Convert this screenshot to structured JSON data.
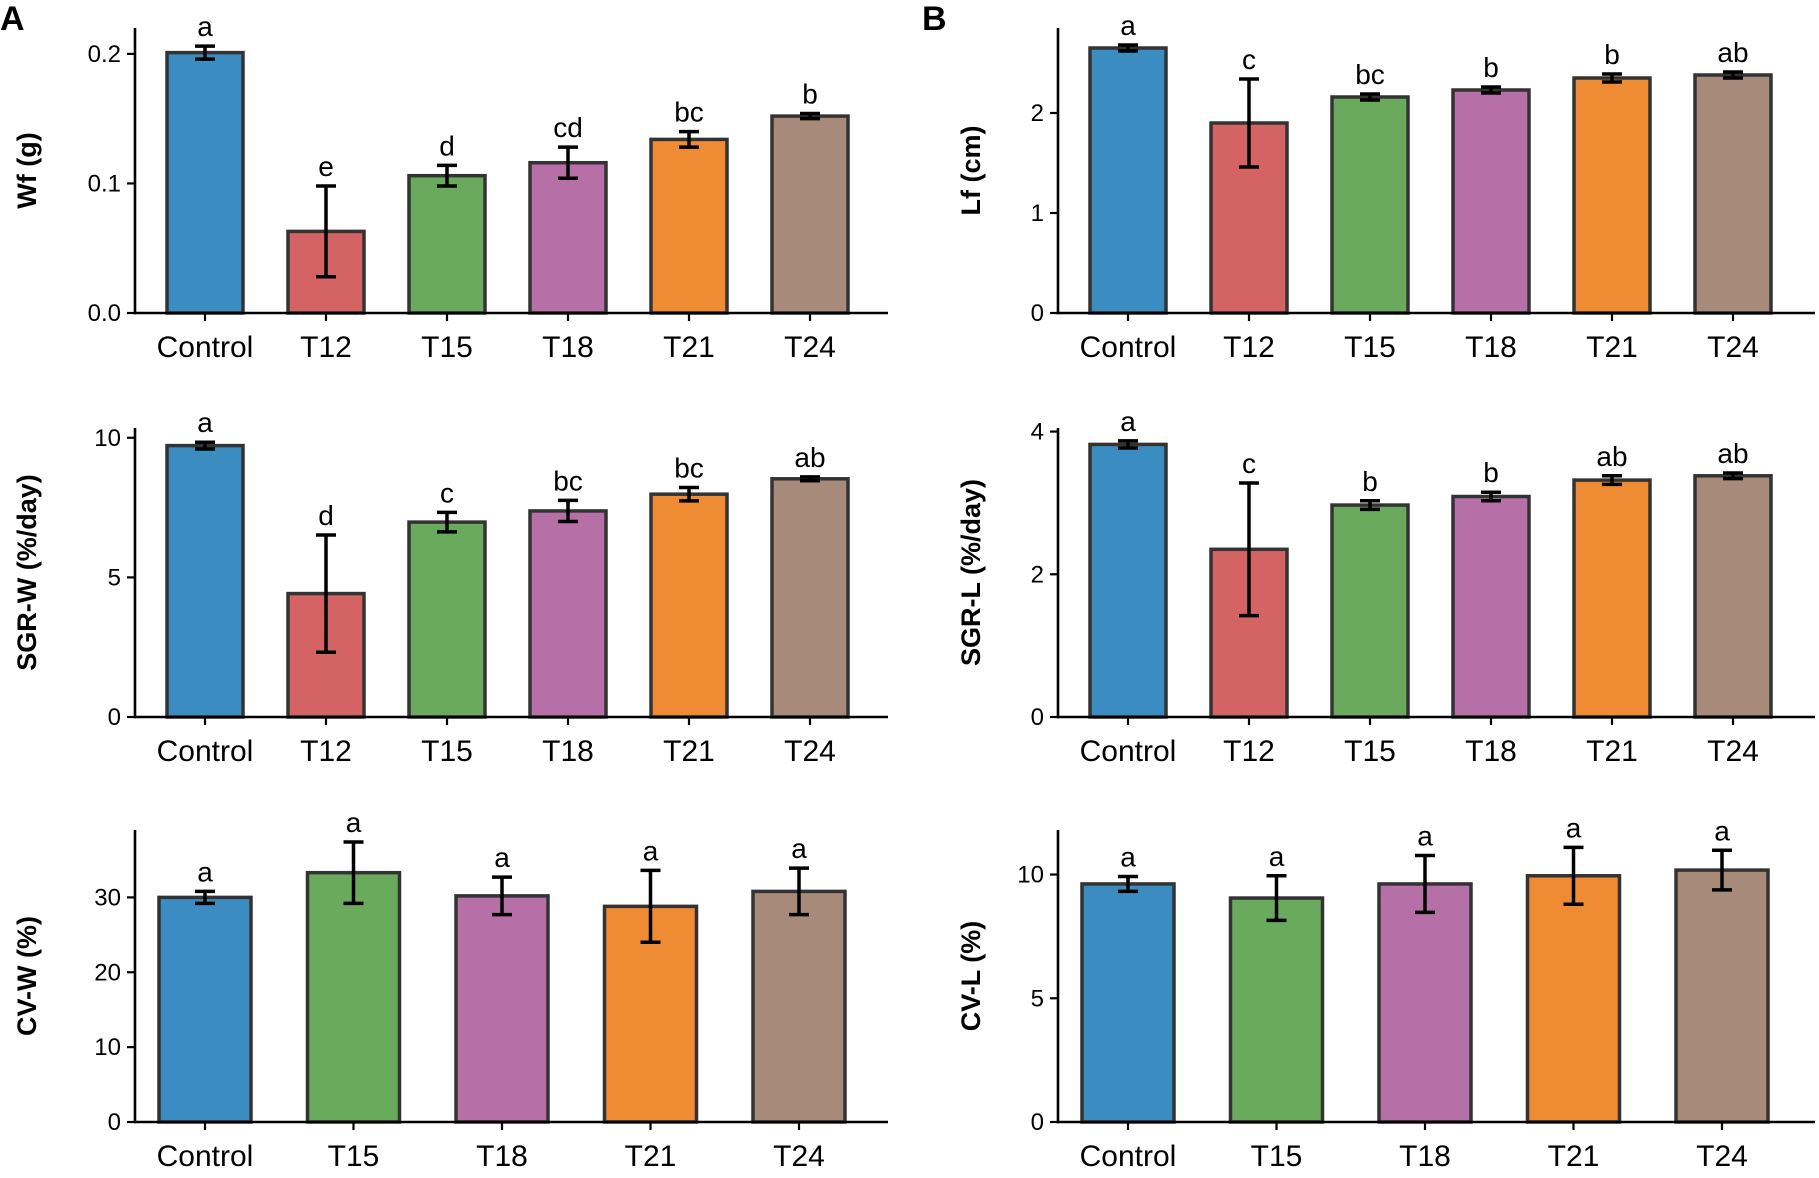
{
  "figure": {
    "panel_letters": [
      "A",
      "B"
    ]
  },
  "colors": {
    "Control": "#3b8dc1",
    "T12": "#d46464",
    "T15": "#6aaa5c",
    "T18": "#b76fa8",
    "T21": "#ef8b33",
    "T24": "#a88a7a"
  },
  "chart_data": [
    {
      "type": "bar",
      "panel": "A",
      "ylabel": "Wf (g)",
      "categories": [
        "Control",
        "T12",
        "T15",
        "T18",
        "T21",
        "T24"
      ],
      "values": [
        0.201,
        0.063,
        0.106,
        0.116,
        0.134,
        0.152
      ],
      "errors": [
        0.005,
        0.035,
        0.008,
        0.012,
        0.006,
        0.002
      ],
      "significance": [
        "a",
        "e",
        "d",
        "cd",
        "bc",
        "b"
      ],
      "ylim": [
        0,
        0.22
      ],
      "yticks": [
        0,
        0.1,
        0.2
      ],
      "ytick_labels": [
        "0.0",
        "0.1",
        "0.2"
      ],
      "grid": false
    },
    {
      "type": "bar",
      "panel": "B",
      "ylabel": "Lf (cm)",
      "categories": [
        "Control",
        "T12",
        "T15",
        "T18",
        "T21",
        "T24"
      ],
      "values": [
        2.65,
        1.9,
        2.16,
        2.23,
        2.35,
        2.38
      ],
      "errors": [
        0.03,
        0.44,
        0.03,
        0.03,
        0.04,
        0.03
      ],
      "significance": [
        "a",
        "c",
        "bc",
        "b",
        "b",
        "ab"
      ],
      "ylim": [
        0,
        2.85
      ],
      "yticks": [
        0,
        1,
        2
      ],
      "ytick_labels": [
        "0",
        "1",
        "2"
      ],
      "grid": false
    },
    {
      "type": "bar",
      "panel": "A",
      "ylabel": "SGR-W (%/day)",
      "categories": [
        "Control",
        "T12",
        "T15",
        "T18",
        "T21",
        "T24"
      ],
      "values": [
        9.72,
        4.42,
        6.98,
        7.38,
        7.98,
        8.53
      ],
      "errors": [
        0.12,
        2.1,
        0.35,
        0.38,
        0.24,
        0.07
      ],
      "significance": [
        "a",
        "d",
        "c",
        "bc",
        "bc",
        "ab"
      ],
      "ylim": [
        0,
        10.35
      ],
      "yticks": [
        0,
        5,
        10
      ],
      "ytick_labels": [
        "0",
        "5",
        "10"
      ],
      "grid": false
    },
    {
      "type": "bar",
      "panel": "B",
      "ylabel": "SGR-L (%/day)",
      "categories": [
        "Control",
        "T12",
        "T15",
        "T18",
        "T21",
        "T24"
      ],
      "values": [
        3.82,
        2.35,
        2.97,
        3.09,
        3.32,
        3.38
      ],
      "errors": [
        0.05,
        0.93,
        0.06,
        0.06,
        0.06,
        0.04
      ],
      "significance": [
        "a",
        "c",
        "b",
        "b",
        "ab",
        "ab"
      ],
      "ylim": [
        0,
        4.05
      ],
      "yticks": [
        0,
        2,
        4
      ],
      "ytick_labels": [
        "0",
        "2",
        "4"
      ],
      "grid": false
    },
    {
      "type": "bar",
      "panel": "A",
      "ylabel": "CV-W (%)",
      "categories": [
        "Control",
        "T15",
        "T18",
        "T21",
        "T24"
      ],
      "values": [
        30.0,
        33.3,
        30.2,
        28.8,
        30.8
      ],
      "errors": [
        0.8,
        4.1,
        2.5,
        4.8,
        3.1
      ],
      "significance": [
        "a",
        "a",
        "a",
        "a",
        "a"
      ],
      "ylim": [
        0,
        39
      ],
      "yticks": [
        0,
        10,
        20,
        30
      ],
      "ytick_labels": [
        "0",
        "10",
        "20",
        "30"
      ],
      "grid": false
    },
    {
      "type": "bar",
      "panel": "B",
      "ylabel": "CV-L (%)",
      "categories": [
        "Control",
        "T15",
        "T18",
        "T21",
        "T24"
      ],
      "values": [
        9.62,
        9.05,
        9.62,
        9.95,
        10.18
      ],
      "errors": [
        0.3,
        0.9,
        1.15,
        1.15,
        0.8
      ],
      "significance": [
        "a",
        "a",
        "a",
        "a",
        "a"
      ],
      "ylim": [
        0,
        11.8
      ],
      "yticks": [
        0,
        5,
        10
      ],
      "ytick_labels": [
        "0",
        "5",
        "10"
      ],
      "grid": false
    }
  ]
}
